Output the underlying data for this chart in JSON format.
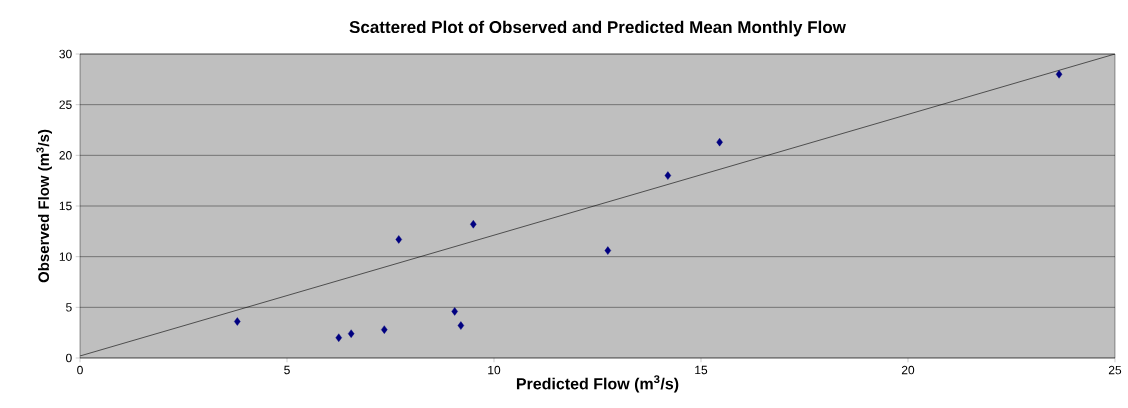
{
  "chart_data": {
    "type": "scatter",
    "title": "Scattered Plot of Observed and Predicted Mean Monthly Flow",
    "xlabel": "Predicted Flow (m$^{3}$/s)",
    "ylabel": "Observed Flow (m$^{3}$/s)",
    "xlim": [
      0,
      25
    ],
    "ylim": [
      0,
      30
    ],
    "xticks": [
      0,
      5,
      10,
      15,
      20,
      25
    ],
    "yticks": [
      0,
      5,
      10,
      15,
      20,
      25,
      30
    ],
    "grid": "y",
    "marker": "diamond",
    "series": [
      {
        "color": "#000080",
        "x": [
          3.8,
          6.25,
          6.55,
          7.35,
          7.7,
          9.05,
          9.2,
          9.5,
          12.75,
          14.2,
          15.45,
          23.65
        ],
        "values": [
          3.6,
          2.0,
          2.4,
          2.8,
          11.7,
          4.6,
          3.2,
          13.2,
          10.6,
          18.0,
          21.3,
          28.0
        ]
      },
      {
        "type": "line",
        "color": "#000000",
        "marker": "none",
        "x": [
          0,
          25
        ],
        "values": [
          0.2,
          30
        ]
      }
    ]
  }
}
